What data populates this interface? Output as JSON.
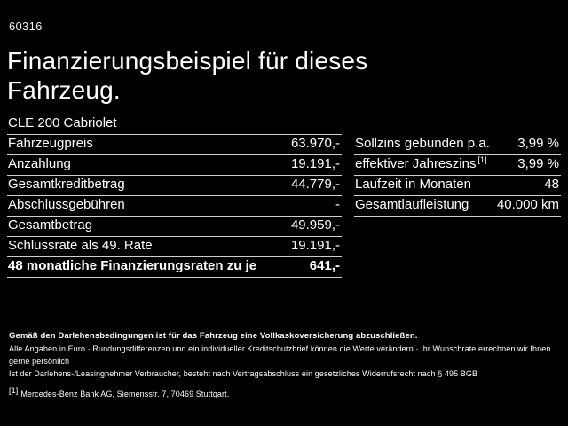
{
  "page": {
    "code": "60316",
    "title_line1": "Finanzierungsbeispiel für dieses",
    "title_line2": "Fahrzeug.",
    "vehicle_model": "CLE 200 Cabriolet"
  },
  "left_table": {
    "rows": [
      {
        "label": "Fahrzeugpreis",
        "value": "63.970,-"
      },
      {
        "label": "Anzahlung",
        "value": "19.191,-"
      },
      {
        "label": "Gesamtkreditbetrag",
        "value": "44.779,-"
      },
      {
        "label": "Abschlussgebühren",
        "value": "-"
      },
      {
        "label": "Gesamtbetrag",
        "value": "49.959,-"
      },
      {
        "label": "Schlussrate als 49. Rate",
        "value": "19.191,-"
      },
      {
        "label": "48 monatliche Finanzierungsraten zu je",
        "value": "641,-"
      }
    ]
  },
  "right_table": {
    "rows": [
      {
        "label": "Sollzins gebunden p.a.",
        "sup": "",
        "value": "3,99 %"
      },
      {
        "label": "effektiver Jahreszins",
        "sup": "[1]",
        "value": "3,99 %"
      },
      {
        "label": "Laufzeit in Monaten",
        "sup": "",
        "value": "48"
      },
      {
        "label": "Gesamtlaufleistung",
        "sup": "",
        "value": "40.000 km"
      }
    ]
  },
  "footer": {
    "insurance_line": "Gemäß den Darlehensbedingungen ist für das Fahrzeug eine Vollkaskoversicherung abzuschließen.",
    "info_line": "Alle Angaben in Euro · Rundungsdifferenzen und ein individueller Kreditschutzbrief können die Werte verändern · Ihr Wunschrate errechnen wir Ihnen gerne persönlich",
    "legal_line": "Ist der Darlehens-/Leasingnehmer Verbraucher, besteht nach Vertragsabschluss ein gesetzliches Widerrufsrecht nach § 495 BGB",
    "footnote_marker": "[1]",
    "footnote_text": "Mercedes-Benz Bank AG, Siemensstr. 7, 70469 Stuttgart."
  },
  "colors": {
    "background": "#000000",
    "text": "#ffffff",
    "divider": "#cfcfcf"
  }
}
